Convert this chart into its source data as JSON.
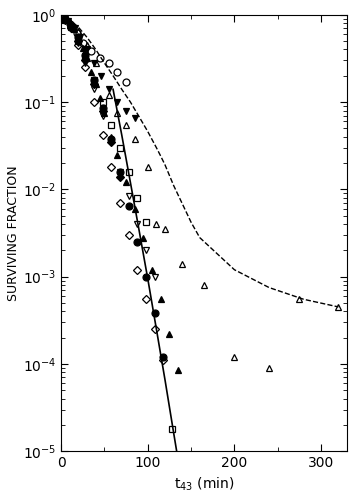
{
  "title": "",
  "xlabel": "t$_{43}$ (min)",
  "ylabel": "SURVIVING FRACTION",
  "xlim": [
    0,
    330
  ],
  "ylim_log": [
    -5,
    0
  ],
  "series": {
    "open_circle": {
      "marker": "o",
      "fillstyle": "none",
      "x": [
        10,
        18,
        25,
        35,
        45,
        55,
        65,
        75
      ],
      "y": [
        0.78,
        0.62,
        0.48,
        0.38,
        0.32,
        0.28,
        0.22,
        0.17
      ]
    },
    "filled_invtriangle": {
      "marker": "v",
      "fillstyle": "full",
      "x": [
        8,
        16,
        22,
        30,
        38,
        46,
        55,
        65,
        75,
        85
      ],
      "y": [
        0.85,
        0.7,
        0.55,
        0.4,
        0.28,
        0.2,
        0.14,
        0.1,
        0.08,
        0.065
      ]
    },
    "open_uptriangle": {
      "marker": "^",
      "fillstyle": "none",
      "x": [
        10,
        20,
        30,
        40,
        55,
        65,
        75,
        85,
        100,
        110,
        120,
        140,
        165,
        200,
        240,
        275,
        320
      ],
      "y": [
        0.82,
        0.65,
        0.45,
        0.28,
        0.12,
        0.075,
        0.055,
        0.038,
        0.018,
        0.004,
        0.0035,
        0.0014,
        0.0008,
        0.00012,
        9e-05,
        0.00055,
        0.00045
      ]
    },
    "filled_diamond": {
      "marker": "D",
      "fillstyle": "full",
      "x": [
        5,
        12,
        20,
        28,
        38,
        48,
        58,
        68
      ],
      "y": [
        0.9,
        0.72,
        0.5,
        0.3,
        0.16,
        0.08,
        0.035,
        0.014
      ]
    },
    "open_square": {
      "marker": "s",
      "fillstyle": "none",
      "x": [
        5,
        12,
        20,
        28,
        38,
        48,
        58,
        68,
        78,
        88,
        98,
        128
      ],
      "y": [
        0.88,
        0.72,
        0.5,
        0.32,
        0.18,
        0.1,
        0.055,
        0.03,
        0.016,
        0.008,
        0.0042,
        1.8e-05
      ]
    },
    "open_invtriangle": {
      "marker": "v",
      "fillstyle": "none",
      "x": [
        5,
        12,
        20,
        28,
        38,
        48,
        58,
        68,
        78,
        88,
        98,
        108
      ],
      "y": [
        0.9,
        0.72,
        0.48,
        0.28,
        0.14,
        0.07,
        0.035,
        0.016,
        0.0085,
        0.004,
        0.002,
        0.001
      ]
    },
    "open_diamond": {
      "marker": "D",
      "fillstyle": "none",
      "x": [
        5,
        12,
        20,
        28,
        38,
        48,
        58,
        68,
        78,
        88,
        98,
        108,
        118
      ],
      "y": [
        0.88,
        0.7,
        0.45,
        0.25,
        0.1,
        0.042,
        0.018,
        0.007,
        0.003,
        0.0012,
        0.00055,
        0.00025,
        0.00011
      ]
    },
    "filled_circle": {
      "marker": "o",
      "fillstyle": "full",
      "x": [
        5,
        12,
        20,
        28,
        38,
        48,
        58,
        68,
        78,
        88,
        98,
        108,
        118
      ],
      "y": [
        0.9,
        0.75,
        0.55,
        0.35,
        0.18,
        0.085,
        0.038,
        0.016,
        0.0065,
        0.0025,
        0.001,
        0.00038,
        0.00012
      ]
    },
    "filled_uptriangle": {
      "marker": "^",
      "fillstyle": "full",
      "x": [
        5,
        10,
        15,
        20,
        25,
        30,
        35,
        40,
        45,
        50,
        58,
        65,
        75,
        85,
        95,
        105,
        115,
        125,
        135,
        155
      ],
      "y": [
        0.92,
        0.82,
        0.68,
        0.55,
        0.42,
        0.32,
        0.22,
        0.16,
        0.11,
        0.075,
        0.04,
        0.025,
        0.012,
        0.006,
        0.0028,
        0.0012,
        0.00055,
        0.00022,
        8.5e-05,
        9e-06
      ]
    }
  },
  "dashed_line_main": {
    "x": [
      0,
      5,
      10,
      20,
      30,
      40,
      50,
      60,
      70,
      80,
      90,
      100,
      110,
      115,
      120,
      130,
      140,
      150,
      160,
      200,
      240,
      280,
      320
    ],
    "y": [
      1.0,
      0.95,
      0.88,
      0.72,
      0.55,
      0.4,
      0.28,
      0.2,
      0.14,
      0.1,
      0.068,
      0.046,
      0.03,
      0.024,
      0.019,
      0.011,
      0.0068,
      0.0042,
      0.0028,
      0.0012,
      0.00075,
      0.00055,
      0.00045
    ]
  },
  "solid_line": {
    "x": [
      60,
      70,
      80,
      90,
      100,
      110,
      120,
      130,
      140
    ],
    "y": [
      0.14,
      0.042,
      0.012,
      0.0034,
      0.00095,
      0.00025,
      6.5e-05,
      1.6e-05,
      4e-06
    ]
  }
}
